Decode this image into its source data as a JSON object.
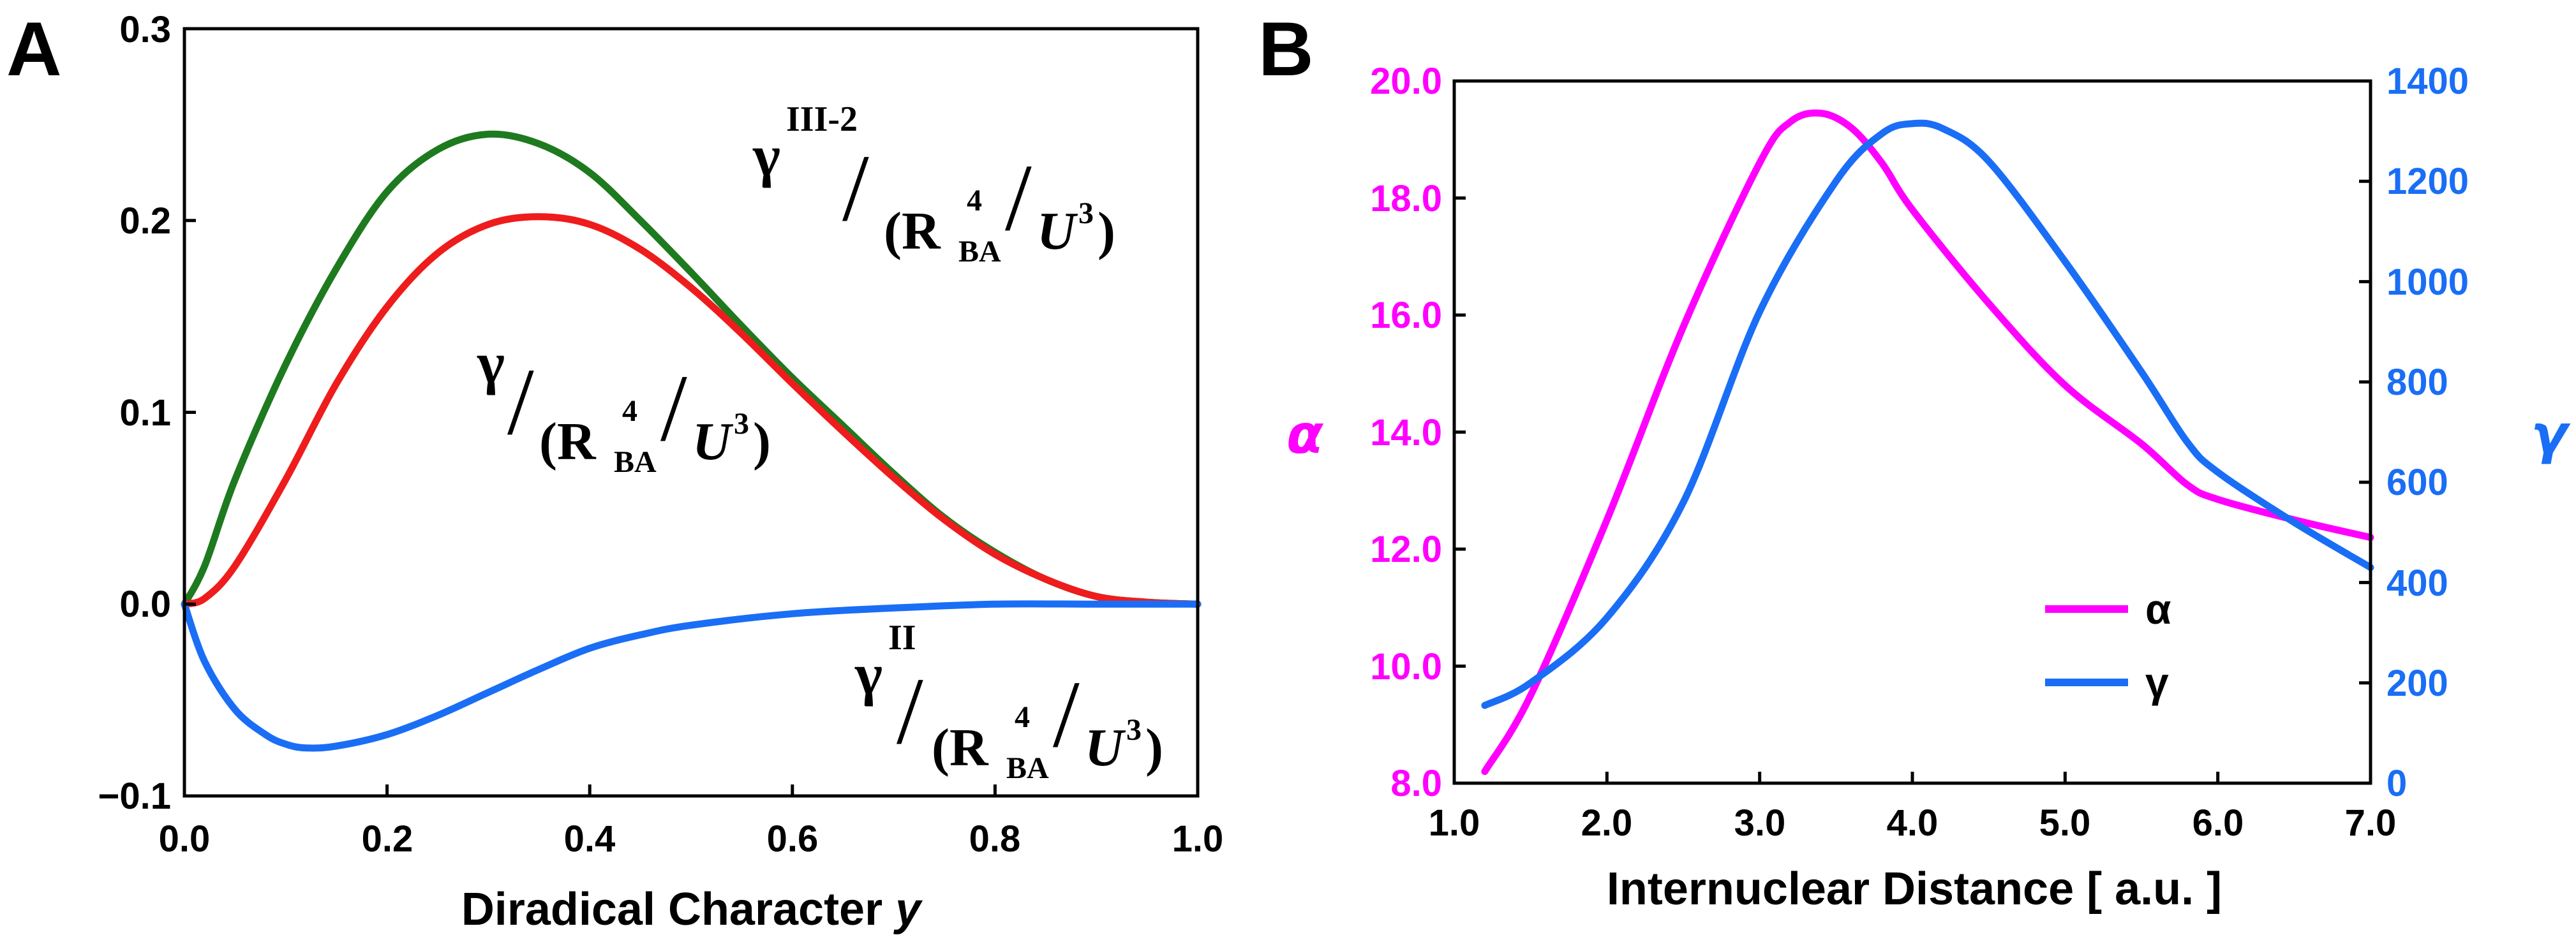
{
  "chart_data": [
    {
      "type": "line",
      "panel_label": "A",
      "xlabel": "Diradical Character ",
      "xlabel_var": "y",
      "ylabel": "",
      "xlim": [
        0.0,
        1.0
      ],
      "ylim": [
        -0.1,
        0.3
      ],
      "xticks": [
        "0.0",
        "0.2",
        "0.4",
        "0.6",
        "0.8",
        "1.0"
      ],
      "yticks": [
        "−0.1",
        "0.0",
        "0.1",
        "0.2",
        "0.3"
      ],
      "series": [
        {
          "name": "γIII-2/(RBA4/U3)",
          "color": "#1e7a1e",
          "x": [
            0.0,
            0.02,
            0.05,
            0.1,
            0.15,
            0.2,
            0.25,
            0.3,
            0.35,
            0.4,
            0.45,
            0.5,
            0.55,
            0.6,
            0.65,
            0.7,
            0.75,
            0.8,
            0.85,
            0.9,
            0.95,
            1.0
          ],
          "y": [
            0.0,
            0.02,
            0.065,
            0.125,
            0.175,
            0.215,
            0.237,
            0.245,
            0.24,
            0.225,
            0.2,
            0.173,
            0.145,
            0.118,
            0.093,
            0.068,
            0.045,
            0.027,
            0.013,
            0.004,
            0.001,
            0.0
          ]
        },
        {
          "name": "γ/(RBA4/U3)",
          "color": "#ee1c1c",
          "x": [
            0.0,
            0.02,
            0.05,
            0.1,
            0.15,
            0.2,
            0.25,
            0.3,
            0.35,
            0.4,
            0.45,
            0.5,
            0.55,
            0.6,
            0.65,
            0.7,
            0.75,
            0.8,
            0.85,
            0.9,
            0.95,
            1.0
          ],
          "y": [
            0.0,
            0.003,
            0.02,
            0.065,
            0.115,
            0.155,
            0.183,
            0.198,
            0.202,
            0.198,
            0.185,
            0.165,
            0.141,
            0.115,
            0.09,
            0.066,
            0.044,
            0.026,
            0.013,
            0.004,
            0.001,
            0.0
          ]
        },
        {
          "name": "γII/(RBA4/U3)",
          "color": "#1a6ef5",
          "x": [
            0.0,
            0.02,
            0.05,
            0.08,
            0.1,
            0.12,
            0.15,
            0.2,
            0.25,
            0.3,
            0.35,
            0.4,
            0.45,
            0.5,
            0.6,
            0.7,
            0.8,
            0.9,
            1.0
          ],
          "y": [
            0.0,
            -0.03,
            -0.055,
            -0.068,
            -0.073,
            -0.075,
            -0.074,
            -0.068,
            -0.058,
            -0.046,
            -0.034,
            -0.023,
            -0.016,
            -0.011,
            -0.005,
            -0.002,
            0.0,
            0.0,
            0.0
          ]
        }
      ],
      "annotations": [
        {
          "num": "γ",
          "sup": "III-2",
          "den_open": "(R",
          "den_sub": "BA",
          "den_sup": "4",
          "den_var": "U",
          "den_pow": "3",
          "den_close": ")",
          "slash": "/"
        },
        {
          "num": "γ",
          "sup": "",
          "den_open": "(R",
          "den_sub": "BA",
          "den_sup": "4",
          "den_var": "U",
          "den_pow": "3",
          "den_close": ")",
          "slash": "/"
        },
        {
          "num": "γ",
          "sup": "II",
          "den_open": "(R",
          "den_sub": "BA",
          "den_sup": "4",
          "den_var": "U",
          "den_pow": "3",
          "den_close": ")",
          "slash": "/"
        }
      ]
    },
    {
      "type": "line",
      "panel_label": "B",
      "xlabel": "Internuclear Distance [ a.u. ]",
      "ylabel_left": "α",
      "ylabel_right": "γ",
      "left_color": "#ff00ff",
      "right_color": "#1a6ef5",
      "xlim": [
        1.0,
        7.0
      ],
      "ylim_left": [
        8.0,
        20.0
      ],
      "ylim_right": [
        0,
        1400
      ],
      "xticks": [
        "1.0",
        "2.0",
        "3.0",
        "4.0",
        "5.0",
        "6.0",
        "7.0"
      ],
      "yticks_left": [
        "8.0",
        "10.0",
        "12.0",
        "14.0",
        "16.0",
        "18.0",
        "20.0"
      ],
      "yticks_right": [
        "0",
        "200",
        "400",
        "600",
        "800",
        "1000",
        "1200",
        "1400"
      ],
      "legend_position": "lower-right",
      "series": [
        {
          "name": "α",
          "axis": "left",
          "color": "#ff00ff",
          "x": [
            1.2,
            1.5,
            2.0,
            2.5,
            3.0,
            3.2,
            3.4,
            3.6,
            3.8,
            4.0,
            4.5,
            5.0,
            5.5,
            5.8,
            6.0,
            6.5,
            7.0
          ],
          "y": [
            8.2,
            9.5,
            12.5,
            15.8,
            18.6,
            19.3,
            19.45,
            19.2,
            18.6,
            17.8,
            16.2,
            14.8,
            13.8,
            13.1,
            12.85,
            12.5,
            12.2
          ]
        },
        {
          "name": "γ",
          "axis": "right",
          "color": "#1a6ef5",
          "x": [
            1.2,
            1.5,
            2.0,
            2.5,
            3.0,
            3.5,
            3.8,
            4.0,
            4.2,
            4.5,
            5.0,
            5.5,
            5.8,
            6.0,
            6.5,
            7.0
          ],
          "y": [
            155,
            200,
            330,
            560,
            940,
            1200,
            1295,
            1315,
            1305,
            1240,
            1040,
            820,
            680,
            620,
            520,
            430
          ]
        }
      ]
    }
  ]
}
